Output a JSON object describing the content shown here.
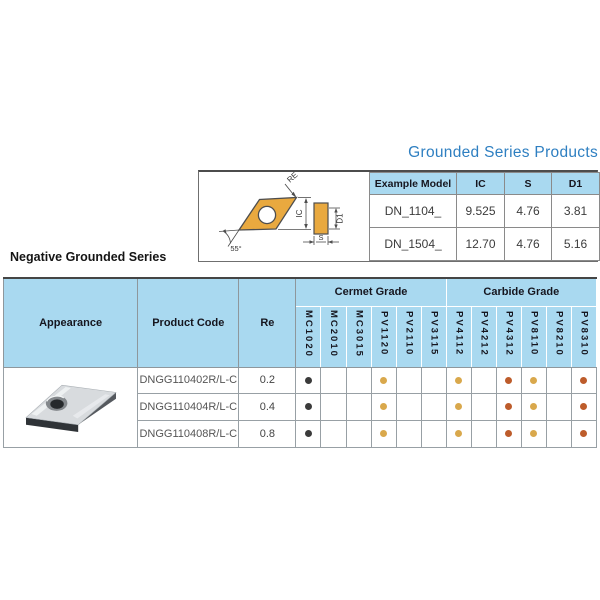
{
  "page": {
    "title": "Grounded Series Products",
    "section_title": "Negative Grounded Series"
  },
  "diagram": {
    "labels": {
      "re": "RE",
      "ic": "IC",
      "angle": "55°",
      "d1": "D1",
      "s": "S"
    }
  },
  "spec_table": {
    "headers": [
      "Example Model",
      "IC",
      "S",
      "D1"
    ],
    "rows": [
      {
        "model": "DN_1104_",
        "ic": "9.525",
        "s": "4.76",
        "d1": "3.81"
      },
      {
        "model": "DN_1504_",
        "ic": "12.70",
        "s": "4.76",
        "d1": "5.16"
      }
    ]
  },
  "grade_table": {
    "headers": {
      "appearance": "Appearance",
      "product_code": "Product Code",
      "re": "Re",
      "cermet": "Cermet Grade",
      "carbide": "Carbide Grade"
    },
    "grade_columns": [
      "MC1020",
      "MC2010",
      "MC3015",
      "PV1120",
      "PV2110",
      "PV3115",
      "PV4112",
      "PV4212",
      "PV4312",
      "PV8110",
      "PV8210",
      "PV8310"
    ],
    "dot_colors": {
      "black": "#3b3b3b",
      "gold": "#d9a84c",
      "rust": "#bd5c2b"
    },
    "products": [
      {
        "code": "DNGG110402R/L-C",
        "re": "0.2",
        "dots": [
          "black",
          "",
          "",
          "gold",
          "",
          "",
          "gold",
          "",
          "rust",
          "gold",
          "",
          "rust"
        ]
      },
      {
        "code": "DNGG110404R/L-C",
        "re": "0.4",
        "dots": [
          "black",
          "",
          "",
          "gold",
          "",
          "",
          "gold",
          "",
          "rust",
          "gold",
          "",
          "rust"
        ]
      },
      {
        "code": "DNGG110408R/L-C",
        "re": "0.8",
        "dots": [
          "black",
          "",
          "",
          "gold",
          "",
          "",
          "gold",
          "",
          "rust",
          "gold",
          "",
          "rust"
        ]
      }
    ]
  },
  "colors": {
    "title_blue": "#2e7fc1",
    "header_blue": "#a9d9f0",
    "insert_gold": "#e9a93f"
  }
}
